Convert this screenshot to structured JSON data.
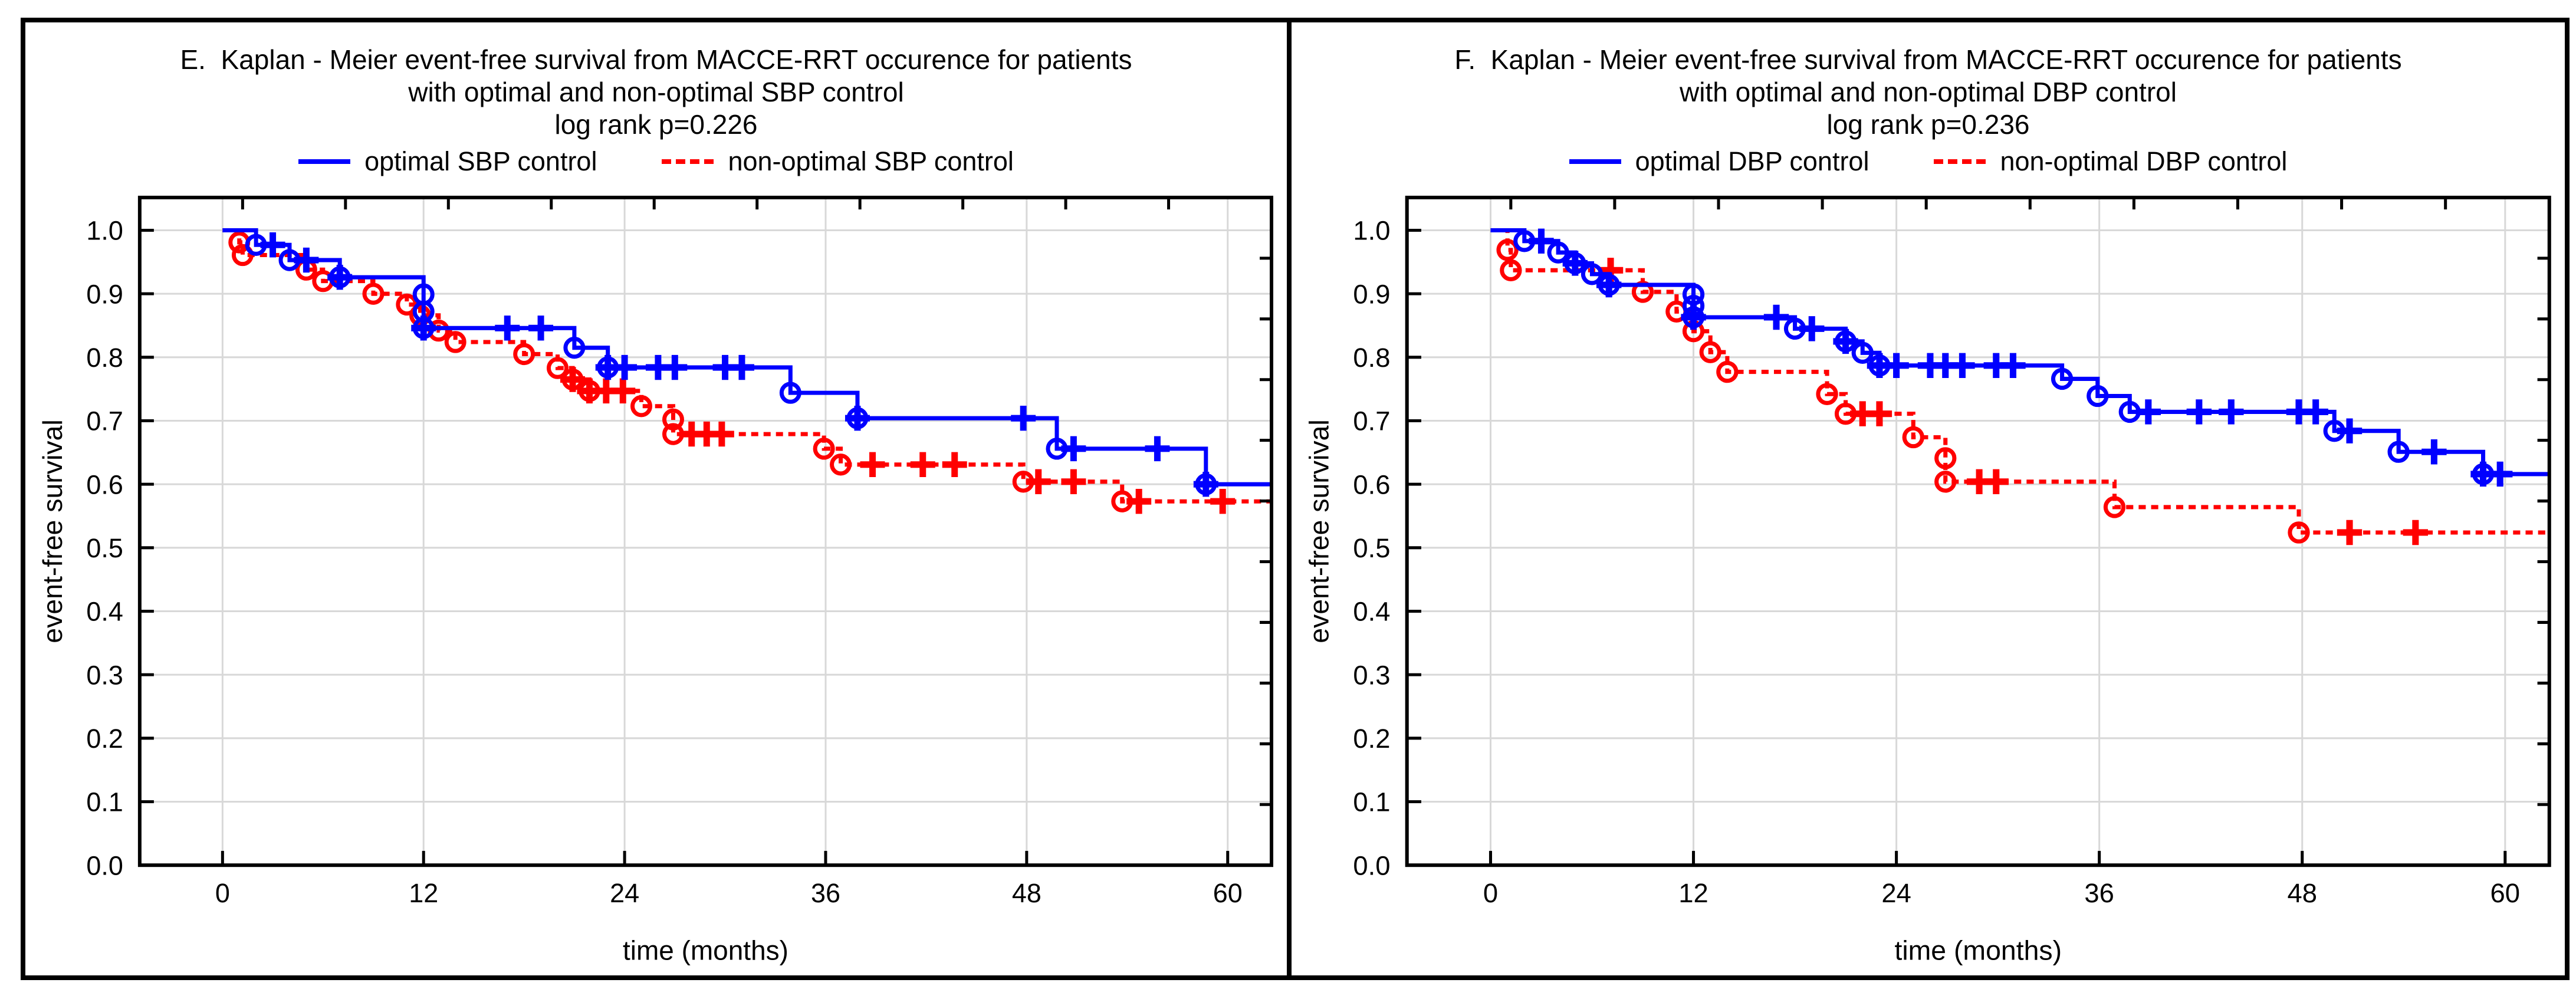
{
  "figure": {
    "background": "#ffffff",
    "border_color": "#000000",
    "grid_color": "#d8d8d8",
    "axis_color": "#000000"
  },
  "chart_data": [
    {
      "type": "line",
      "panel_label": "E.",
      "title_lines": [
        "E.  Kaplan - Meier event-free survival from MACCE-RRT occurence for patients",
        "with optimal and non-optimal SBP control",
        "log rank p=0.226"
      ],
      "xlabel": "time (months)",
      "ylabel": "event-free survival",
      "xticks": [
        0,
        12,
        24,
        36,
        48,
        60
      ],
      "ytick_labels": [
        "0.0",
        "0.1",
        "0.2",
        "0.3",
        "0.4",
        "0.5",
        "0.6",
        "0.7",
        "0.8",
        "0.9",
        "1.0"
      ],
      "xlim": [
        -4.9,
        62.6
      ],
      "ylim": [
        0.0,
        1.05
      ],
      "grid": true,
      "legend_position": "top",
      "series": [
        {
          "name": "optimal SBP control",
          "color": "#0000ff",
          "style": "solid",
          "steps": [
            [
              0,
              1.0
            ],
            [
              2,
              0.977
            ],
            [
              4,
              0.953
            ],
            [
              7,
              0.926
            ],
            [
              12,
              0.846
            ],
            [
              21,
              0.815
            ],
            [
              23,
              0.784
            ],
            [
              33.9,
              0.744
            ],
            [
              37.9,
              0.704
            ],
            [
              49.8,
              0.656
            ],
            [
              58.7,
              0.6
            ]
          ],
          "events": [
            [
              2,
              0.977
            ],
            [
              4,
              0.953
            ],
            [
              7,
              0.926
            ],
            [
              12,
              0.899
            ],
            [
              12,
              0.872
            ],
            [
              12,
              0.846
            ],
            [
              21,
              0.815
            ],
            [
              23,
              0.784
            ],
            [
              33.9,
              0.744
            ],
            [
              37.9,
              0.704
            ],
            [
              49.8,
              0.656
            ],
            [
              58.7,
              0.6
            ]
          ],
          "censored": [
            [
              3,
              0.977
            ],
            [
              5,
              0.953
            ],
            [
              7,
              0.926
            ],
            [
              12,
              0.846
            ],
            [
              17,
              0.846
            ],
            [
              19,
              0.846
            ],
            [
              23,
              0.784
            ],
            [
              24,
              0.784
            ],
            [
              26,
              0.784
            ],
            [
              27,
              0.784
            ],
            [
              30,
              0.784
            ],
            [
              31,
              0.784
            ],
            [
              37.9,
              0.704
            ],
            [
              47.8,
              0.704
            ],
            [
              50.8,
              0.656
            ],
            [
              55.8,
              0.656
            ],
            [
              58.7,
              0.6
            ]
          ]
        },
        {
          "name": "non-optimal SBP control",
          "color": "#ff0000",
          "style": "dashed",
          "steps": [
            [
              0,
              1.0
            ],
            [
              1,
              0.981
            ],
            [
              1.2,
              0.961
            ],
            [
              5,
              0.938
            ],
            [
              6,
              0.92
            ],
            [
              9,
              0.9
            ],
            [
              11,
              0.883
            ],
            [
              11.8,
              0.866
            ],
            [
              12.9,
              0.842
            ],
            [
              13.9,
              0.824
            ],
            [
              18,
              0.805
            ],
            [
              20,
              0.783
            ],
            [
              20.9,
              0.765
            ],
            [
              21.9,
              0.747
            ],
            [
              25,
              0.723
            ],
            [
              26.9,
              0.679
            ],
            [
              35.9,
              0.656
            ],
            [
              36.9,
              0.631
            ],
            [
              47.8,
              0.604
            ],
            [
              53.7,
              0.573
            ]
          ],
          "events": [
            [
              1,
              0.981
            ],
            [
              1.2,
              0.961
            ],
            [
              5,
              0.938
            ],
            [
              6,
              0.92
            ],
            [
              9,
              0.9
            ],
            [
              11,
              0.883
            ],
            [
              11.8,
              0.866
            ],
            [
              12.9,
              0.842
            ],
            [
              13.9,
              0.824
            ],
            [
              18,
              0.805
            ],
            [
              20,
              0.783
            ],
            [
              20.9,
              0.765
            ],
            [
              21.9,
              0.747
            ],
            [
              25,
              0.723
            ],
            [
              26.9,
              0.702
            ],
            [
              26.9,
              0.679
            ],
            [
              35.9,
              0.656
            ],
            [
              36.9,
              0.631
            ],
            [
              47.8,
              0.604
            ],
            [
              53.7,
              0.573
            ]
          ],
          "censored": [
            [
              20.9,
              0.765
            ],
            [
              21.9,
              0.747
            ],
            [
              22.9,
              0.747
            ],
            [
              23.9,
              0.747
            ],
            [
              28,
              0.679
            ],
            [
              28.9,
              0.679
            ],
            [
              29.8,
              0.679
            ],
            [
              38.8,
              0.631
            ],
            [
              41.8,
              0.631
            ],
            [
              43.7,
              0.631
            ],
            [
              48.7,
              0.604
            ],
            [
              50.8,
              0.604
            ],
            [
              54.7,
              0.573
            ],
            [
              59.7,
              0.573
            ]
          ]
        }
      ]
    },
    {
      "type": "line",
      "panel_label": "F.",
      "title_lines": [
        "F.  Kaplan - Meier event-free survival from MACCE-RRT occurence for patients",
        "with optimal and non-optimal DBP control",
        "log rank p=0.236"
      ],
      "xlabel": "time (months)",
      "ylabel": "event-free survival",
      "xticks": [
        0,
        12,
        24,
        36,
        48,
        60
      ],
      "ytick_labels": [
        "0.0",
        "0.1",
        "0.2",
        "0.3",
        "0.4",
        "0.5",
        "0.6",
        "0.7",
        "0.8",
        "0.9",
        "1.0"
      ],
      "xlim": [
        -4.9,
        62.6
      ],
      "ylim": [
        0.0,
        1.05
      ],
      "grid": true,
      "legend_position": "top",
      "series": [
        {
          "name": "optimal DBP control",
          "color": "#0000ff",
          "style": "solid",
          "steps": [
            [
              0,
              1.0
            ],
            [
              2,
              0.983
            ],
            [
              4,
              0.965
            ],
            [
              5,
              0.948
            ],
            [
              6,
              0.931
            ],
            [
              7,
              0.914
            ],
            [
              12,
              0.863
            ],
            [
              18,
              0.845
            ],
            [
              21,
              0.825
            ],
            [
              22,
              0.807
            ],
            [
              23,
              0.787
            ],
            [
              33.8,
              0.766
            ],
            [
              35.9,
              0.739
            ],
            [
              37.8,
              0.714
            ],
            [
              49.9,
              0.684
            ],
            [
              53.7,
              0.651
            ],
            [
              58.7,
              0.616
            ]
          ],
          "events": [
            [
              2,
              0.983
            ],
            [
              4,
              0.965
            ],
            [
              5,
              0.948
            ],
            [
              6,
              0.931
            ],
            [
              7,
              0.914
            ],
            [
              12,
              0.899
            ],
            [
              12,
              0.881
            ],
            [
              12,
              0.863
            ],
            [
              18,
              0.845
            ],
            [
              21,
              0.825
            ],
            [
              22,
              0.807
            ],
            [
              23,
              0.787
            ],
            [
              33.8,
              0.766
            ],
            [
              35.9,
              0.739
            ],
            [
              37.8,
              0.714
            ],
            [
              49.9,
              0.684
            ],
            [
              53.7,
              0.651
            ],
            [
              58.7,
              0.616
            ]
          ],
          "censored": [
            [
              3,
              0.983
            ],
            [
              5,
              0.948
            ],
            [
              7,
              0.914
            ],
            [
              12,
              0.863
            ],
            [
              16.9,
              0.863
            ],
            [
              19,
              0.845
            ],
            [
              21,
              0.825
            ],
            [
              23,
              0.787
            ],
            [
              24,
              0.787
            ],
            [
              26,
              0.787
            ],
            [
              26.9,
              0.787
            ],
            [
              27.9,
              0.787
            ],
            [
              29.9,
              0.787
            ],
            [
              30.9,
              0.787
            ],
            [
              38.9,
              0.714
            ],
            [
              41.9,
              0.714
            ],
            [
              43.8,
              0.714
            ],
            [
              47.8,
              0.714
            ],
            [
              48.8,
              0.714
            ],
            [
              50.8,
              0.684
            ],
            [
              55.8,
              0.651
            ],
            [
              58.7,
              0.616
            ],
            [
              59.7,
              0.616
            ]
          ]
        },
        {
          "name": "non-optimal DBP control",
          "color": "#ff0000",
          "style": "dashed",
          "steps": [
            [
              0,
              1.0
            ],
            [
              1,
              0.969
            ],
            [
              1.2,
              0.937
            ],
            [
              9,
              0.903
            ],
            [
              11,
              0.872
            ],
            [
              12,
              0.841
            ],
            [
              13,
              0.808
            ],
            [
              14,
              0.777
            ],
            [
              19.9,
              0.742
            ],
            [
              21,
              0.711
            ],
            [
              25,
              0.674
            ],
            [
              26.9,
              0.604
            ],
            [
              36.9,
              0.564
            ],
            [
              47.8,
              0.524
            ]
          ],
          "events": [
            [
              1,
              0.969
            ],
            [
              1.2,
              0.937
            ],
            [
              9,
              0.903
            ],
            [
              11,
              0.872
            ],
            [
              12,
              0.841
            ],
            [
              13,
              0.808
            ],
            [
              14,
              0.777
            ],
            [
              19.9,
              0.742
            ],
            [
              21,
              0.711
            ],
            [
              25,
              0.674
            ],
            [
              26.9,
              0.641
            ],
            [
              26.9,
              0.604
            ],
            [
              36.9,
              0.564
            ],
            [
              47.8,
              0.524
            ]
          ],
          "censored": [
            [
              7.1,
              0.937
            ],
            [
              22,
              0.711
            ],
            [
              23,
              0.711
            ],
            [
              28.9,
              0.604
            ],
            [
              29.9,
              0.604
            ],
            [
              50.8,
              0.524
            ],
            [
              54.7,
              0.524
            ]
          ]
        }
      ]
    }
  ]
}
